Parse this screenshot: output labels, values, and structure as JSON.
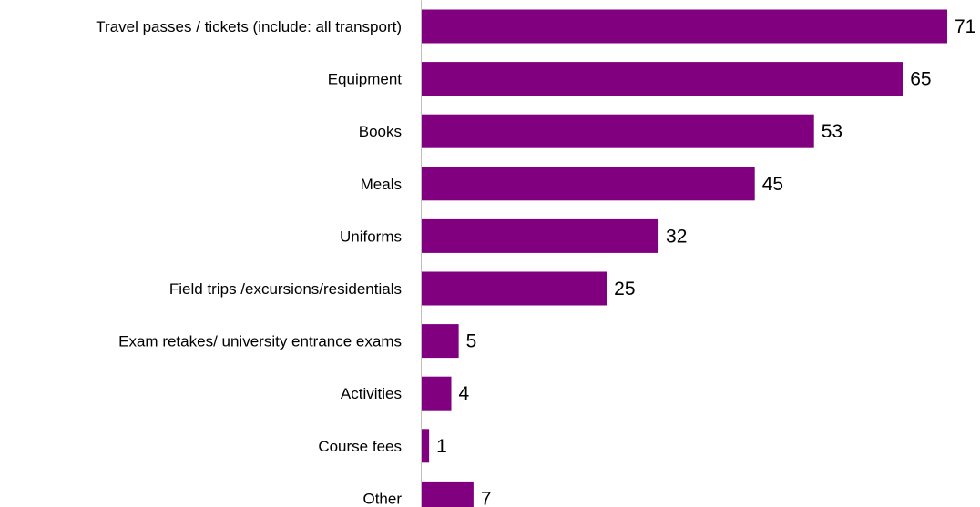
{
  "chart_data": {
    "type": "bar",
    "orientation": "horizontal",
    "categories": [
      "Travel passes / tickets (include: all transport)",
      "Equipment",
      "Books",
      "Meals",
      "Uniforms",
      "Field trips /excursions/residentials",
      "Exam retakes/ university entrance exams",
      "Activities",
      "Course fees",
      "Other"
    ],
    "values": [
      71,
      65,
      53,
      45,
      32,
      25,
      5,
      4,
      1,
      7
    ],
    "data_labels": [
      "71",
      "65",
      "53",
      "45",
      "32",
      "25",
      "5",
      "4",
      "1",
      "7"
    ],
    "xlim": [
      0,
      71
    ],
    "grid": false,
    "legend": "none",
    "colors": {
      "bar": "#800080",
      "axis": "#bfbfbf",
      "text": "#000000"
    }
  }
}
